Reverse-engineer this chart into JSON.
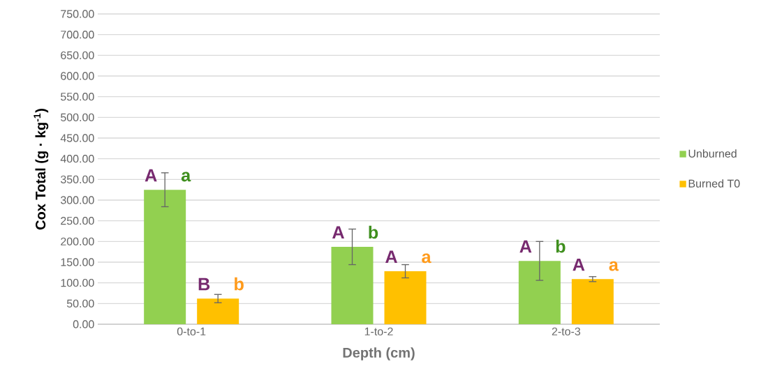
{
  "chart_data": {
    "type": "bar",
    "xlabel": "Depth (cm)",
    "ylabel": "Cox Total (g · kg$^{-1}$)",
    "categories": [
      "0-to-1",
      "1-to-2",
      "2-to-3"
    ],
    "series": [
      {
        "name": "Unburned",
        "color": "#92d050",
        "values": [
          325,
          187,
          153
        ],
        "errors": [
          41,
          43,
          47
        ]
      },
      {
        "name": "Burned T0",
        "color": "#ffc000",
        "values": [
          62,
          128,
          109
        ],
        "errors": [
          10,
          16,
          6
        ]
      }
    ],
    "ylim": [
      0,
      750
    ],
    "yticks": [
      {
        "value": 0,
        "label": "0.00"
      },
      {
        "value": 50,
        "label": "50.00"
      },
      {
        "value": 100,
        "label": "100.00"
      },
      {
        "value": 150,
        "label": "150.00"
      },
      {
        "value": 200,
        "label": "200.00"
      },
      {
        "value": 250,
        "label": "250.00"
      },
      {
        "value": 300,
        "label": "300.00"
      },
      {
        "value": 350,
        "label": "350.00"
      },
      {
        "value": 400,
        "label": "400.00"
      },
      {
        "value": 450,
        "label": "450.00"
      },
      {
        "value": 500,
        "label": "500.00"
      },
      {
        "value": 550,
        "label": "550.00"
      },
      {
        "value": 600,
        "label": "600.00"
      },
      {
        "value": 650,
        "label": "650.00"
      },
      {
        "value": 700,
        "label": "700.00"
      },
      {
        "value": 750,
        "label": "750.00"
      }
    ],
    "grid": "y",
    "legend": "right",
    "annotations": [
      "A",
      "a",
      "A",
      "b",
      "A",
      "b",
      "B",
      "b",
      "A",
      "a",
      "A",
      "a"
    ]
  }
}
